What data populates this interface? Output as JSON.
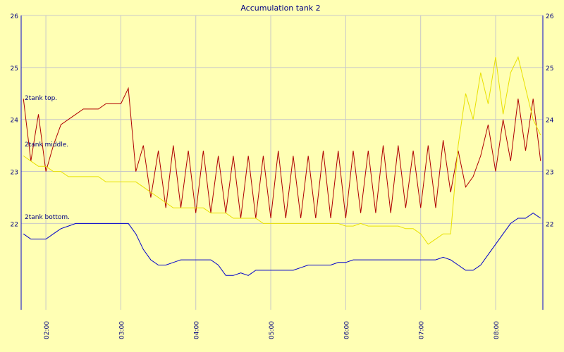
{
  "chart_data": {
    "type": "line",
    "title": "Accumulation tank 2",
    "x": [
      1.7,
      1.8,
      1.9,
      2.0,
      2.1,
      2.2,
      2.3,
      2.4,
      2.5,
      2.6,
      2.7,
      2.8,
      2.9,
      3.0,
      3.1,
      3.2,
      3.3,
      3.4,
      3.5,
      3.6,
      3.7,
      3.8,
      3.9,
      4.0,
      4.1,
      4.2,
      4.3,
      4.4,
      4.5,
      4.6,
      4.7,
      4.8,
      4.9,
      5.0,
      5.1,
      5.2,
      5.3,
      5.4,
      5.5,
      5.6,
      5.7,
      5.8,
      5.9,
      6.0,
      6.1,
      6.2,
      6.3,
      6.4,
      6.5,
      6.6,
      6.7,
      6.8,
      6.9,
      7.0,
      7.1,
      7.2,
      7.3,
      7.4,
      7.5,
      7.6,
      7.7,
      7.8,
      7.9,
      8.0,
      8.1,
      8.2,
      8.3,
      8.4,
      8.5,
      8.6
    ],
    "series": [
      {
        "name": "2tank top.",
        "color": "#b00000",
        "values": [
          24.4,
          23.2,
          24.1,
          23.0,
          23.5,
          23.9,
          24.0,
          24.1,
          24.2,
          24.2,
          24.2,
          24.3,
          24.3,
          24.3,
          24.6,
          23.0,
          23.5,
          22.5,
          23.4,
          22.3,
          23.5,
          22.3,
          23.4,
          22.2,
          23.4,
          22.2,
          23.3,
          22.2,
          23.3,
          22.1,
          23.3,
          22.1,
          23.3,
          22.1,
          23.4,
          22.1,
          23.3,
          22.1,
          23.3,
          22.1,
          23.4,
          22.1,
          23.4,
          22.1,
          23.4,
          22.2,
          23.4,
          22.2,
          23.5,
          22.2,
          23.5,
          22.3,
          23.4,
          22.3,
          23.5,
          22.3,
          23.6,
          22.6,
          23.4,
          22.7,
          22.9,
          23.3,
          23.9,
          23.0,
          24.0,
          23.2,
          24.4,
          23.4,
          24.4,
          23.2
        ]
      },
      {
        "name": "2tank middle.",
        "color": "#e8e000",
        "values": [
          23.3,
          23.2,
          23.1,
          23.1,
          23.0,
          23.0,
          22.9,
          22.9,
          22.9,
          22.9,
          22.9,
          22.8,
          22.8,
          22.8,
          22.8,
          22.8,
          22.7,
          22.6,
          22.5,
          22.4,
          22.3,
          22.3,
          22.3,
          22.3,
          22.3,
          22.2,
          22.2,
          22.2,
          22.1,
          22.1,
          22.1,
          22.1,
          22.0,
          22.0,
          22.0,
          22.0,
          22.0,
          22.0,
          22.0,
          22.0,
          22.0,
          22.0,
          22.0,
          21.95,
          21.95,
          22.0,
          21.95,
          21.95,
          21.95,
          21.95,
          21.95,
          21.9,
          21.9,
          21.8,
          21.6,
          21.7,
          21.8,
          21.8,
          23.5,
          24.5,
          24.0,
          24.9,
          24.3,
          25.2,
          24.1,
          24.9,
          25.2,
          24.6,
          24.0,
          23.7
        ]
      },
      {
        "name": "2tank bottom.",
        "color": "#0000cc",
        "values": [
          21.8,
          21.7,
          21.7,
          21.7,
          21.8,
          21.9,
          21.95,
          22.0,
          22.0,
          22.0,
          22.0,
          22.0,
          22.0,
          22.0,
          22.0,
          21.8,
          21.5,
          21.3,
          21.2,
          21.2,
          21.25,
          21.3,
          21.3,
          21.3,
          21.3,
          21.3,
          21.2,
          21.0,
          21.0,
          21.05,
          21.0,
          21.1,
          21.1,
          21.1,
          21.1,
          21.1,
          21.1,
          21.15,
          21.2,
          21.2,
          21.2,
          21.2,
          21.25,
          21.25,
          21.3,
          21.3,
          21.3,
          21.3,
          21.3,
          21.3,
          21.3,
          21.3,
          21.3,
          21.3,
          21.3,
          21.3,
          21.35,
          21.3,
          21.2,
          21.1,
          21.1,
          21.2,
          21.4,
          21.6,
          21.8,
          22.0,
          22.1,
          22.1,
          22.2,
          22.1
        ]
      }
    ],
    "xlim": [
      1.67,
      8.63
    ],
    "xticks": [
      {
        "value": 2,
        "label": "02:00"
      },
      {
        "value": 3,
        "label": "03:00"
      },
      {
        "value": 4,
        "label": "04:00"
      },
      {
        "value": 5,
        "label": "05:00"
      },
      {
        "value": 6,
        "label": "06:00"
      },
      {
        "value": 7,
        "label": "07:00"
      },
      {
        "value": 8,
        "label": "08:00"
      }
    ],
    "ylim": [
      20.34,
      26
    ],
    "yticks": [
      22,
      23,
      24,
      25,
      26
    ],
    "grid": true
  }
}
